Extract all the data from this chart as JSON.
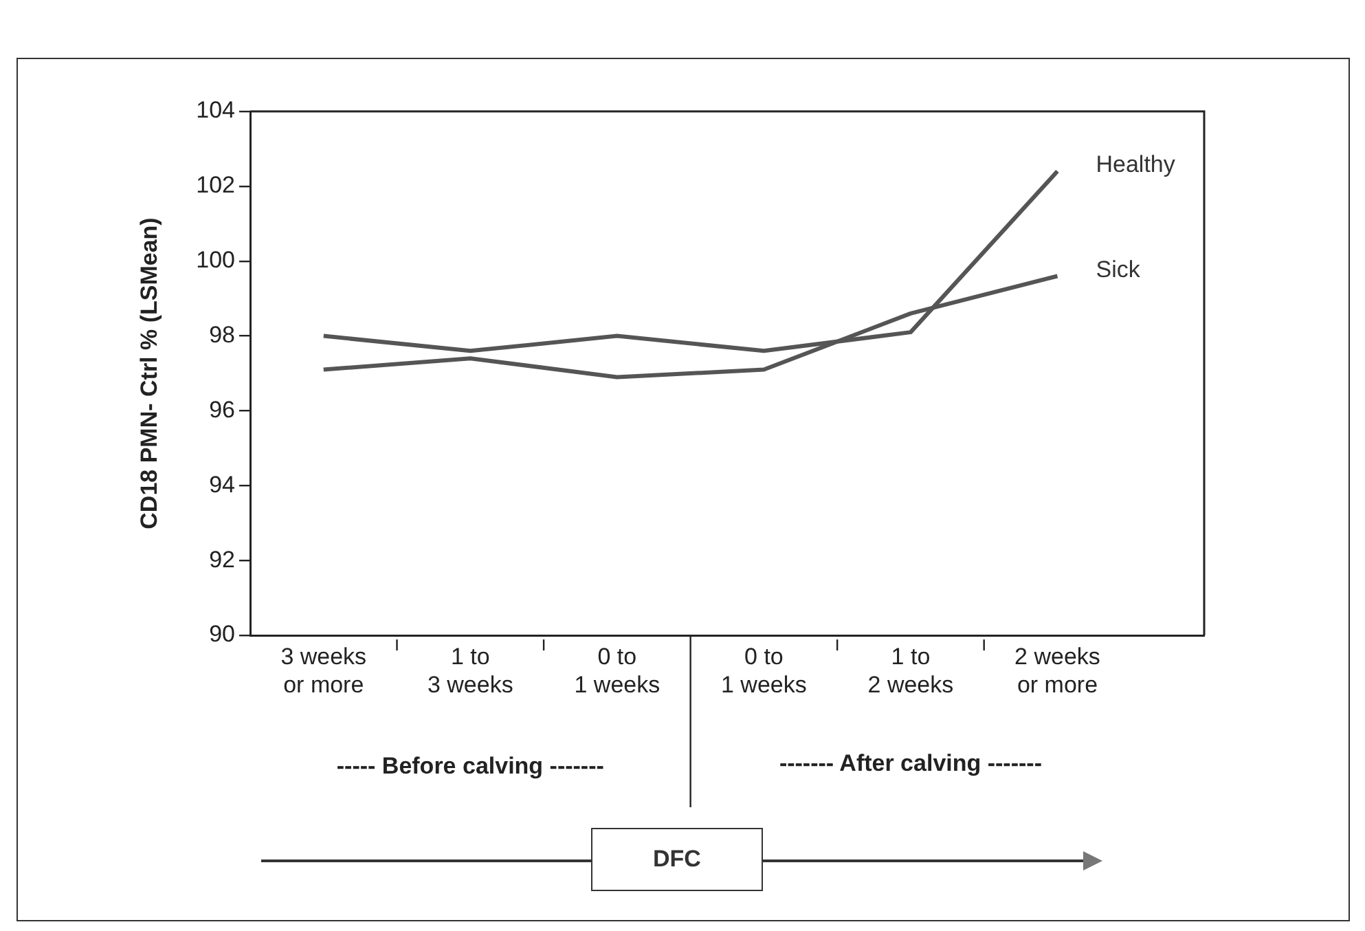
{
  "chart_data": {
    "type": "line",
    "ylabel": "CD18 PMN- Ctrl % (LSMean)",
    "categories": [
      "3 weeks or more",
      "1 to 3 weeks",
      "0 to 1 weeks",
      "0 to 1 weeks",
      "1 to 2 weeks",
      "2 weeks or more"
    ],
    "series": [
      {
        "name": "Healthy",
        "color": "#555555",
        "values": [
          98.0,
          97.6,
          98.0,
          97.6,
          98.1,
          102.4
        ]
      },
      {
        "name": "Sick",
        "color": "#555555",
        "values": [
          97.1,
          97.4,
          96.9,
          97.1,
          98.6,
          99.6
        ]
      }
    ],
    "ylim": [
      90,
      104
    ],
    "yticks": [
      90,
      92,
      94,
      96,
      98,
      100,
      102,
      104
    ],
    "annotations": [
      "----- Before calving -------",
      "------- After calving -------",
      "DFC"
    ],
    "grid": false,
    "legend": false,
    "marker": "none",
    "line_style": "solid"
  }
}
